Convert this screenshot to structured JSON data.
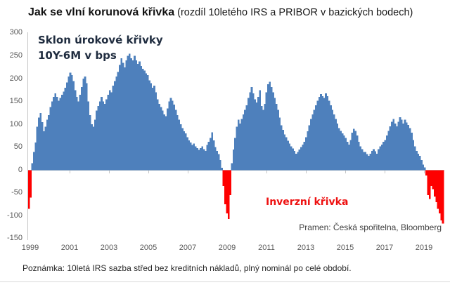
{
  "title": {
    "main": "Jak se vlní korunová křivka",
    "subtitle": "(rozdíl 10letého IRS a PRIBOR v bazických bodech)"
  },
  "source": "Pramen: Česká spořitelna, Bloomberg",
  "footnote": "Poznámka: 10letá IRS sazba střed bez kreditních nákladů, plný nominál po celé období.",
  "chart_data": {
    "type": "bar",
    "title": "Sklon úrokové křivky 10Y-6M v bps",
    "annotation_line1": "Sklon úrokové křivky",
    "annotation_line2": "10Y-6M v bps",
    "negative_region_label": "Inverzní křivka",
    "xlabel": "",
    "ylabel": "bps",
    "ylim": [
      -150,
      300
    ],
    "grid": "off",
    "legend": "none",
    "positive_color": "#4e80bc",
    "negative_color": "#fe0000",
    "axis_color": "#c6c6c6",
    "x_start_year": 1999,
    "frequency": "monthly",
    "x_tick_labels": [
      "1999",
      "2001",
      "2003",
      "2005",
      "2007",
      "2009",
      "2011",
      "2013",
      "2015",
      "2017",
      "2019"
    ],
    "y_tick_labels": [
      "300",
      "250",
      "200",
      "150",
      "100",
      "50",
      "0",
      "-50",
      "-100",
      "-150"
    ],
    "y_ticks": [
      300,
      250,
      200,
      150,
      100,
      50,
      0,
      -50,
      -100,
      -150
    ],
    "values": [
      -85,
      -60,
      15,
      40,
      60,
      95,
      115,
      125,
      105,
      85,
      95,
      110,
      120,
      138,
      150,
      160,
      168,
      160,
      152,
      158,
      165,
      172,
      180,
      192,
      205,
      213,
      208,
      195,
      175,
      160,
      150,
      165,
      182,
      200,
      205,
      190,
      150,
      120,
      100,
      95,
      110,
      130,
      140,
      150,
      160,
      150,
      145,
      155,
      165,
      175,
      170,
      185,
      195,
      205,
      215,
      230,
      245,
      235,
      225,
      240,
      250,
      255,
      245,
      240,
      250,
      240,
      232,
      238,
      228,
      222,
      218,
      212,
      208,
      196,
      190,
      180,
      185,
      170,
      155,
      145,
      138,
      130,
      122,
      118,
      135,
      150,
      158,
      152,
      143,
      132,
      120,
      110,
      100,
      92,
      85,
      80,
      72,
      65,
      60,
      55,
      58,
      52,
      48,
      44,
      48,
      52,
      46,
      42,
      55,
      62,
      70,
      83,
      65,
      50,
      42,
      35,
      22,
      5,
      -35,
      -75,
      -95,
      -107,
      -55,
      15,
      45,
      70,
      95,
      110,
      102,
      112,
      122,
      132,
      142,
      158,
      170,
      182,
      168,
      155,
      148,
      160,
      175,
      140,
      132,
      145,
      170,
      188,
      193,
      182,
      170,
      158,
      145,
      132,
      115,
      98,
      88,
      78,
      72,
      64,
      58,
      52,
      47,
      42,
      36,
      40,
      45,
      50,
      56,
      62,
      72,
      85,
      98,
      112,
      122,
      132,
      142,
      152,
      160,
      166,
      162,
      158,
      168,
      162,
      152,
      142,
      132,
      122,
      112,
      102,
      92,
      86,
      80,
      76,
      70,
      62,
      56,
      66,
      82,
      90,
      86,
      76,
      62,
      52,
      46,
      40,
      40,
      35,
      31,
      36,
      42,
      46,
      41,
      36,
      46,
      52,
      56,
      62,
      66,
      76,
      86,
      96,
      106,
      112,
      102,
      96,
      106,
      116,
      110,
      102,
      110,
      104,
      99,
      92,
      82,
      66,
      52,
      42,
      36,
      31,
      22,
      12,
      6,
      -12,
      -55,
      -63,
      -35,
      -42,
      -58,
      -70,
      -85,
      -95,
      -110,
      -117
    ]
  }
}
